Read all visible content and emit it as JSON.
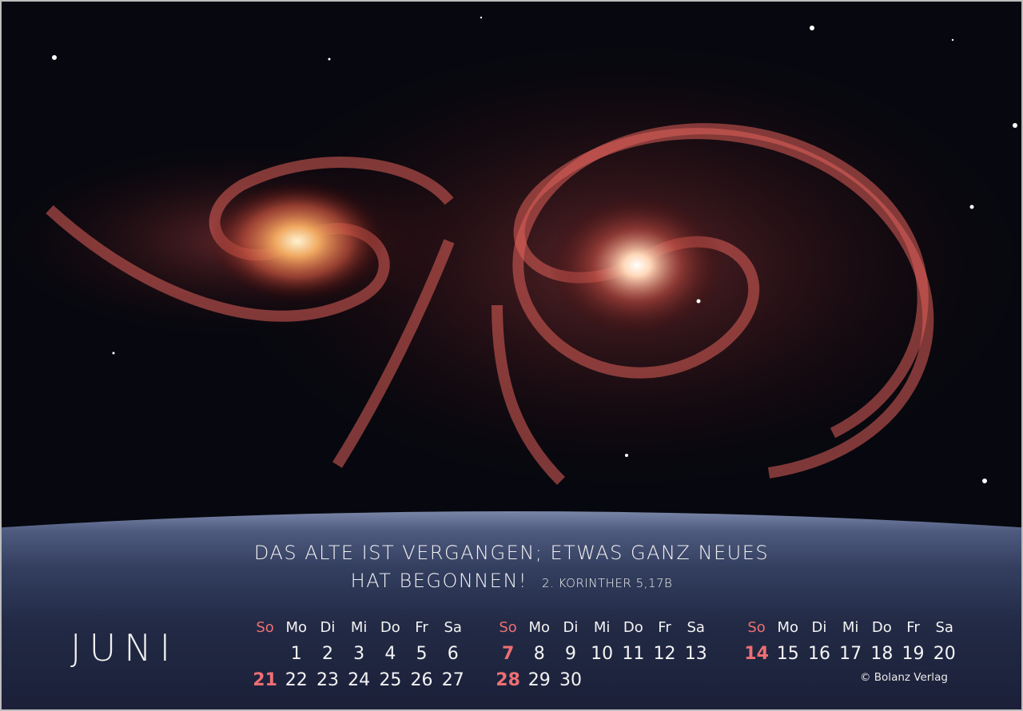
{
  "quote": {
    "line1": "DAS ALTE IST VERGANGEN; ETWAS GANZ NEUES",
    "line2": "HAT BEGONNEN!",
    "reference": "2. KORINTHER 5,17B"
  },
  "month": "JUNI",
  "weekday_headers": [
    "So",
    "Mo",
    "Di",
    "Mi",
    "Do",
    "Fr",
    "Sa"
  ],
  "blocks": [
    {
      "weeks": [
        [
          "",
          "1",
          "2",
          "3",
          "4",
          "5",
          "6"
        ],
        [
          "21",
          "22",
          "23",
          "24",
          "25",
          "26",
          "27"
        ]
      ]
    },
    {
      "weeks": [
        [
          "7",
          "8",
          "9",
          "10",
          "11",
          "12",
          "13"
        ],
        [
          "28",
          "29",
          "30",
          "",
          "",
          "",
          ""
        ]
      ]
    },
    {
      "weeks": [
        [
          "14",
          "15",
          "16",
          "17",
          "18",
          "19",
          "20"
        ]
      ]
    }
  ],
  "copyright": "© Bolanz Verlag",
  "colors": {
    "sunday": "#ee6f73",
    "text": "#f4f4f4",
    "panel": "#222a45"
  },
  "image": "spiral-galaxy-pair"
}
